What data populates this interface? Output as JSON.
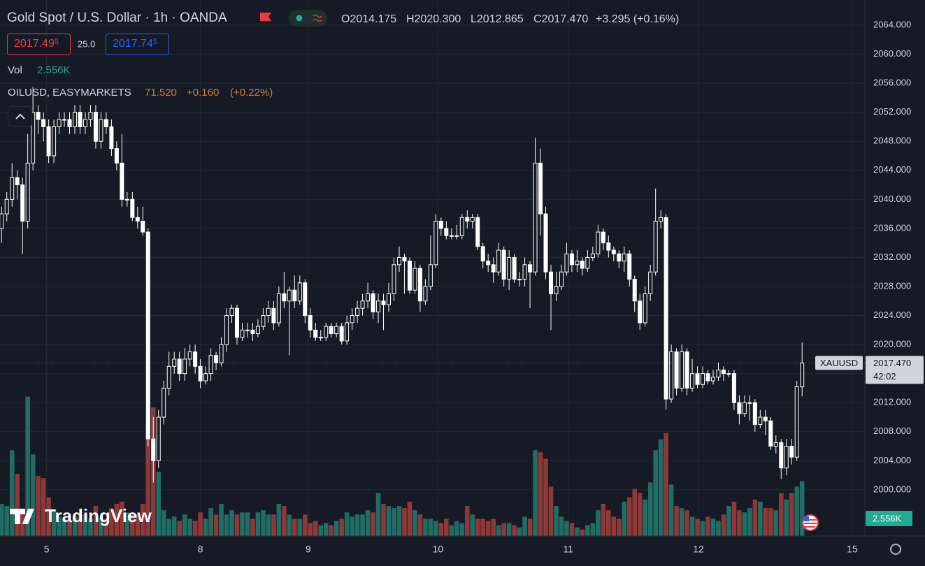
{
  "chart_data": {
    "type": "candlestick",
    "title": "Gold Spot / U.S. Dollar · 1h · OANDA",
    "header_ohlc": {
      "open": "O2014.175",
      "high": "H2020.300",
      "low": "L2012.865",
      "close": "C2017.470",
      "change": "+3.295 (+0.16%)"
    },
    "bid": {
      "price": "2017.49",
      "pip": "5"
    },
    "spread": "25.0",
    "ask": {
      "price": "2017.74",
      "pip": "5"
    },
    "volume_legend": {
      "name": "Vol",
      "value": "2.556K"
    },
    "overlay": {
      "name": "OILUSD, EASYMARKETS",
      "value": "71.520",
      "change": "+0.160",
      "change_pct": "(+0.22%)"
    },
    "symbol": "XAUUSD",
    "last_price": {
      "value": 2017.47,
      "label": "2017.470"
    },
    "countdown": "42:02",
    "volume_axis_label": "2.556K",
    "watermark": "TradingView",
    "open": [
      2036,
      2038,
      2040,
      2043,
      2042,
      2037,
      2045,
      2052,
      2051,
      2050,
      2046,
      2050,
      2051,
      2051,
      2050,
      2052,
      2050,
      2051,
      2052,
      2048,
      2051,
      2050,
      2047,
      2045,
      2040,
      2040,
      2037.5,
      2037,
      2035.5,
      2007,
      2004,
      2010,
      2014,
      2017,
      2018,
      2016,
      2018,
      2019,
      2017,
      2015,
      2016,
      2018.5,
      2017.5,
      2020,
      2024,
      2025,
      2021,
      2022,
      2022,
      2021.5,
      2022.5,
      2024,
      2025,
      2023,
      2027,
      2026,
      2027.5,
      2026,
      2028.5,
      2024,
      2022,
      2021,
      2021,
      2022.5,
      2021.5,
      2022.5,
      2020.5,
      2023,
      2024,
      2025,
      2026,
      2027,
      2024.5,
      2026,
      2025.5,
      2027,
      2031,
      2032,
      2031.5,
      2027.5,
      2030.5,
      2026,
      2028,
      2031,
      2037,
      2036,
      2035,
      2035,
      2035,
      2037.5,
      2037,
      2037.5,
      2033.5,
      2031.5,
      2031,
      2030,
      2033,
      2029,
      2032,
      2029,
      2029,
      2031,
      2030,
      2045,
      2038,
      2030,
      2027,
      2028,
      2030,
      2032.5,
      2031,
      2031.5,
      2030.5,
      2032,
      2032.5,
      2035.5,
      2034,
      2033,
      2032.5,
      2031.5,
      2032.5,
      2029,
      2026,
      2023,
      2027,
      2030,
      2037,
      2037.5,
      2012.5,
      2019,
      2014,
      2019,
      2014,
      2016,
      2014.5,
      2016,
      2015,
      2015.5,
      2016.5,
      2016,
      2016,
      2012,
      2010.5,
      2012,
      2012,
      2009,
      2010,
      2009.5,
      2006,
      2006.5,
      2003,
      2006,
      2004.5,
      2014.175
    ],
    "high": [
      2039,
      2041,
      2045,
      2044,
      2043,
      2049,
      2055.5,
      2053,
      2052,
      2051,
      2051,
      2052,
      2052,
      2052,
      2053,
      2053,
      2052,
      2053,
      2053,
      2052,
      2052,
      2051,
      2048,
      2049,
      2041,
      2041,
      2039,
      2039,
      2036,
      2010,
      2011,
      2015,
      2019,
      2019,
      2019,
      2019.5,
      2020,
      2020,
      2018,
      2017,
      2019.5,
      2019,
      2021,
      2025,
      2025.5,
      2025.5,
      2023,
      2023,
      2023,
      2023.5,
      2025,
      2026,
      2026,
      2028,
      2030,
      2028,
      2029.5,
      2029.5,
      2029,
      2025,
      2023,
      2022,
      2023,
      2023,
      2023,
      2023,
      2024,
      2025,
      2026,
      2027,
      2028.5,
      2027.5,
      2027,
      2027,
      2028.5,
      2032,
      2033.5,
      2032.5,
      2032,
      2031.5,
      2031,
      2029,
      2035,
      2038,
      2037.5,
      2037,
      2036,
      2036.5,
      2038,
      2038.5,
      2038,
      2038,
      2034,
      2032.5,
      2032,
      2034,
      2033.5,
      2033,
      2032.5,
      2030,
      2032,
      2031.5,
      2048.5,
      2047,
      2039,
      2031,
      2030,
      2031,
      2034,
      2033,
      2033,
      2032,
      2033,
      2033.5,
      2036.5,
      2036,
      2035,
      2033.5,
      2033,
      2033.5,
      2033,
      2029.5,
      2027,
      2028,
      2031,
      2041.5,
      2038.5,
      2038,
      2020,
      2019.5,
      2020,
      2019.5,
      2018,
      2017,
      2017,
      2016.5,
      2016.5,
      2017.5,
      2017,
      2016.5,
      2016.5,
      2013,
      2013,
      2013,
      2012.5,
      2011,
      2011,
      2010,
      2007.5,
      2007,
      2007,
      2007,
      2015,
      2020.3
    ],
    "low": [
      2034,
      2037,
      2039,
      2040,
      2032.5,
      2036,
      2044,
      2049,
      2048,
      2045,
      2045,
      2049,
      2050,
      2049,
      2049,
      2049,
      2049,
      2050,
      2047,
      2047,
      2049,
      2046,
      2044,
      2039,
      2039,
      2037,
      2036,
      2035,
      2006,
      2001,
      2003,
      2009,
      2013,
      2016,
      2015,
      2015,
      2017,
      2016,
      2014,
      2014.5,
      2015,
      2016.5,
      2017,
      2019,
      2023,
      2020,
      2020.5,
      2021,
      2020.5,
      2021,
      2022,
      2023,
      2022,
      2022.5,
      2025,
      2018.5,
      2025,
      2025.5,
      2023,
      2021,
      2020.5,
      2020.5,
      2020.5,
      2021,
      2021,
      2020,
      2020,
      2022,
      2023,
      2024,
      2025,
      2023.5,
      2023,
      2022,
      2024.5,
      2026,
      2030,
      2027,
      2027,
      2027,
      2024.5,
      2025.5,
      2027.5,
      2030.5,
      2035,
      2034.5,
      2034.5,
      2034.5,
      2034.5,
      2036,
      2036,
      2033,
      2030.5,
      2030,
      2028.5,
      2029.5,
      2028,
      2027.5,
      2028.5,
      2028,
      2028,
      2025,
      2029.5,
      2035,
      2029,
      2022,
      2026,
      2027.5,
      2029.5,
      2030,
      2030,
      2029.5,
      2030,
      2031.5,
      2032,
      2033,
      2032,
      2031.5,
      2030.5,
      2030,
      2028,
      2024.5,
      2022,
      2022.5,
      2026,
      2029.5,
      2036,
      2011,
      2012,
      2013,
      2013.5,
      2013,
      2013.5,
      2014,
      2014,
      2014.5,
      2014.5,
      2015,
      2015,
      2015.5,
      2011,
      2009,
      2010,
      2009.5,
      2008,
      2008.5,
      2007.5,
      2005.5,
      2005,
      2001.5,
      2002,
      2003.5,
      2004,
      2012.865
    ],
    "close": [
      2038,
      2040,
      2043,
      2042,
      2037,
      2045,
      2052,
      2051,
      2050,
      2046,
      2050,
      2051,
      2051,
      2050,
      2052,
      2050,
      2051,
      2052,
      2048,
      2051,
      2050,
      2047,
      2045,
      2040,
      2040,
      2037.5,
      2037,
      2035.5,
      2007,
      2004,
      2010,
      2014,
      2017,
      2018,
      2016,
      2018,
      2019,
      2017,
      2015,
      2016,
      2018.5,
      2017.5,
      2020,
      2024,
      2025,
      2021,
      2022,
      2022,
      2021.5,
      2022.5,
      2024,
      2025,
      2023,
      2027,
      2026,
      2027.5,
      2026,
      2028.5,
      2024,
      2022,
      2021,
      2021,
      2022.5,
      2021.5,
      2022.5,
      2020.5,
      2023,
      2024,
      2025,
      2026,
      2027,
      2024.5,
      2026,
      2025.5,
      2027,
      2031,
      2032,
      2031.5,
      2027.5,
      2030.5,
      2026,
      2028,
      2031,
      2037,
      2036,
      2035,
      2035,
      2035,
      2037.5,
      2037,
      2037.5,
      2033.5,
      2031.5,
      2031,
      2030,
      2033,
      2029,
      2032,
      2029,
      2029,
      2031,
      2030,
      2045,
      2038,
      2030,
      2027,
      2028,
      2030,
      2032.5,
      2031,
      2031.5,
      2030.5,
      2032,
      2032.5,
      2035.5,
      2034,
      2033,
      2032.5,
      2031.5,
      2032.5,
      2029,
      2026,
      2023,
      2027,
      2030,
      2037,
      2037.5,
      2012.5,
      2019,
      2014,
      2019,
      2014,
      2016,
      2014.5,
      2016,
      2015,
      2015.5,
      2016.5,
      2016,
      2016,
      2012,
      2010.5,
      2012,
      2012,
      2009,
      2010,
      2009.5,
      2006,
      2006.5,
      2003,
      2006,
      2004.5,
      2014.2,
      2017.47
    ],
    "volume": [
      1500,
      1400,
      4000,
      2900,
      1200,
      6500,
      3800,
      2800,
      2700,
      1800,
      1200,
      900,
      800,
      700,
      900,
      1100,
      1000,
      800,
      1400,
      900,
      800,
      1300,
      1500,
      1600,
      1100,
      1000,
      1000,
      1500,
      5500,
      6000,
      3000,
      1200,
      800,
      900,
      700,
      1000,
      800,
      700,
      1100,
      800,
      1300,
      1000,
      1500,
      1000,
      1200,
      1000,
      1100,
      1100,
      800,
      1100,
      1200,
      1000,
      1000,
      1500,
      1400,
      1000,
      800,
      800,
      1000,
      600,
      700,
      500,
      600,
      500,
      700,
      800,
      1100,
      900,
      1000,
      1000,
      1200,
      1100,
      2000,
      1500,
      1400,
      1300,
      1400,
      1300,
      1600,
      1200,
      1000,
      800,
      800,
      700,
      600,
      800,
      500,
      700,
      600,
      1400,
      1000,
      800,
      800,
      700,
      800,
      500,
      600,
      600,
      500,
      400,
      900,
      800,
      4000,
      3900,
      3600,
      2300,
      1400,
      900,
      700,
      600,
      400,
      300,
      500,
      600,
      1200,
      1500,
      1200,
      900,
      800,
      1600,
      1800,
      2200,
      2000,
      1700,
      2500,
      4000,
      4500,
      4800,
      2400,
      1400,
      1300,
      1200,
      900,
      800,
      700,
      900,
      800,
      700,
      1000,
      1400,
      1600,
      1200,
      1100,
      1300,
      1700,
      1600,
      1300,
      1300,
      1200,
      2000,
      1700,
      2000,
      2300,
      2556
    ],
    "xlim": [
      -0.3,
      165
    ],
    "xticks": [
      {
        "value": 8.6,
        "label": "5"
      },
      {
        "value": 38,
        "label": "8"
      },
      {
        "value": 58.6,
        "label": "9"
      },
      {
        "value": 83.4,
        "label": "10"
      },
      {
        "value": 108.3,
        "label": "11"
      },
      {
        "value": 133.2,
        "label": "12"
      },
      {
        "value": 162.6,
        "label": "15"
      }
    ],
    "ylim": [
      1993.64,
      2067.46
    ],
    "yticks": [
      {
        "value": 2000,
        "label": "2000.000"
      },
      {
        "value": 2004,
        "label": "2004.000"
      },
      {
        "value": 2008,
        "label": "2008.000"
      },
      {
        "value": 2012,
        "label": "2012.000"
      },
      {
        "value": 2016,
        "label": "2016.000"
      },
      {
        "value": 2020,
        "label": "2020.000"
      },
      {
        "value": 2024,
        "label": "2024.000"
      },
      {
        "value": 2028,
        "label": "2028.000"
      },
      {
        "value": 2032,
        "label": "2032.000"
      },
      {
        "value": 2036,
        "label": "2036.000"
      },
      {
        "value": 2040,
        "label": "2040.000"
      },
      {
        "value": 2044,
        "label": "2044.000"
      },
      {
        "value": 2048,
        "label": "2048.000"
      },
      {
        "value": 2052,
        "label": "2052.000"
      },
      {
        "value": 2056,
        "label": "2056.000"
      },
      {
        "value": 2060,
        "label": "2060.000"
      },
      {
        "value": 2064,
        "label": "2064.000"
      }
    ],
    "y2lim": [
      0,
      25000
    ],
    "grid": true,
    "candle_color": "#ffffff",
    "volume_up_color": "#1f6d65",
    "volume_down_color": "#8e3838"
  }
}
